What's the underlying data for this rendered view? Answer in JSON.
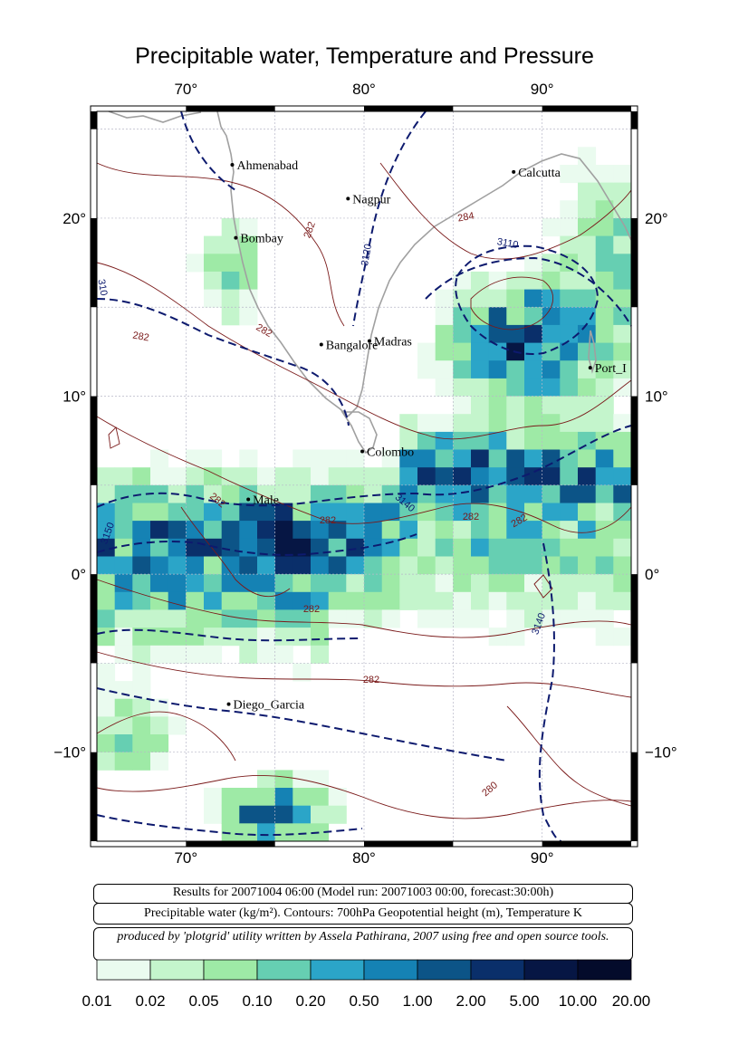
{
  "title": "Precipitable water, Temperature and Pressure",
  "axes": {
    "lon_ticks": [
      "70°",
      "80°",
      "90°"
    ],
    "lat_ticks_left": [
      "20°",
      "10°",
      "0°",
      "−10°"
    ],
    "lat_ticks_right": [
      "20°",
      "10°",
      "0°",
      "−10°"
    ],
    "lon_range": [
      65,
      95
    ],
    "lat_range": [
      -15,
      26
    ]
  },
  "cities": [
    {
      "name": "Ahmenabad",
      "lon": 72.6,
      "lat": 23.0
    },
    {
      "name": "Nagpur",
      "lon": 79.1,
      "lat": 21.1
    },
    {
      "name": "Calcutta",
      "lon": 88.4,
      "lat": 22.6
    },
    {
      "name": "Bombay",
      "lon": 72.8,
      "lat": 18.9
    },
    {
      "name": "Bangalore",
      "lon": 77.6,
      "lat": 12.9
    },
    {
      "name": "Madras",
      "lon": 80.3,
      "lat": 13.1
    },
    {
      "name": "Port_I",
      "lon": 92.7,
      "lat": 11.6
    },
    {
      "name": "Colombo",
      "lon": 79.9,
      "lat": 6.9
    },
    {
      "name": "Male",
      "lon": 73.5,
      "lat": 4.2
    },
    {
      "name": "Diego_Garcia",
      "lon": 72.4,
      "lat": -7.3
    }
  ],
  "contour_labels": [
    "282",
    "284",
    "3110",
    "3120",
    "3130",
    "310",
    "3140",
    "3150",
    "280"
  ],
  "info": {
    "run": "Results for 20071004 06:00 (Model run: 20071003 00:00, forecast:30:00h)",
    "legend": "Precipitable water (kg/m²).  Contours: 700hPa Geopotential height (m), Temperature K",
    "credit": "produced by 'plotgrid' utility written by Assela Pathirana, 2007 using free and open source tools."
  },
  "colorbar": {
    "labels": [
      "0.01",
      "0.02",
      "0.05",
      "0.10",
      "0.20",
      "0.50",
      "1.00",
      "2.00",
      "5.00",
      "10.00",
      "20.00"
    ],
    "colors": [
      "#eafbef",
      "#c4f5cc",
      "#9eeaa6",
      "#66cfb2",
      "#2ba5c8",
      "#1582b4",
      "#0c5487",
      "#0a2f6a",
      "#061644",
      "#040b2b"
    ]
  }
}
